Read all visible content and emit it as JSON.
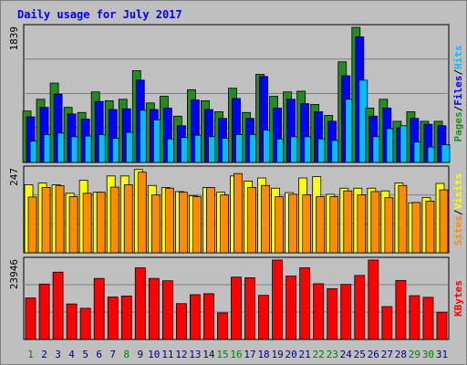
{
  "title": "Daily usage for July 2017",
  "days": [
    "1",
    "2",
    "3",
    "4",
    "5",
    "6",
    "7",
    "8",
    "9",
    "10",
    "11",
    "12",
    "13",
    "14",
    "15",
    "16",
    "17",
    "18",
    "19",
    "20",
    "21",
    "22",
    "23",
    "24",
    "25",
    "26",
    "27",
    "28",
    "29",
    "30",
    "31"
  ],
  "weekend_days": [
    1,
    8,
    15,
    16,
    22,
    23,
    29,
    30
  ],
  "colors": {
    "background": "#c0c0c0",
    "pages": "#228b22",
    "files": "#0000ff",
    "hits": "#00bfff",
    "visits": "#ffff00",
    "sites": "#ff8c00",
    "kbytes": "#ff0000",
    "title": "#0000ff",
    "weekday_label": "#000080",
    "weekend_label": "#008000"
  },
  "chart_data": [
    {
      "type": "bar",
      "panel": "top",
      "max_label": "1839",
      "ylim": [
        0,
        1839
      ],
      "right_labels": [
        {
          "text": "Pages",
          "color": "#228b22"
        },
        {
          "text": "/",
          "color": "#000000"
        },
        {
          "text": "Files",
          "color": "#0000ff"
        },
        {
          "text": "/",
          "color": "#000000"
        },
        {
          "text": "Hits",
          "color": "#00bfff"
        }
      ],
      "series": [
        {
          "name": "Hits",
          "color": "#228b22",
          "values": [
            700,
            860,
            1080,
            750,
            680,
            960,
            840,
            860,
            1250,
            810,
            900,
            630,
            990,
            840,
            690,
            1010,
            680,
            1200,
            900,
            960,
            970,
            790,
            640,
            1370,
            1839,
            740,
            860,
            560,
            690,
            560,
            560
          ]
        },
        {
          "name": "Files",
          "color": "#0000ff",
          "values": [
            620,
            750,
            930,
            660,
            590,
            830,
            720,
            730,
            1120,
            720,
            740,
            500,
            850,
            720,
            600,
            870,
            600,
            1170,
            740,
            860,
            800,
            690,
            560,
            1180,
            1710,
            630,
            740,
            470,
            600,
            520,
            500
          ]
        },
        {
          "name": "Pages",
          "color": "#00bfff",
          "values": [
            290,
            380,
            400,
            350,
            360,
            380,
            330,
            410,
            710,
            580,
            320,
            340,
            370,
            350,
            330,
            380,
            380,
            440,
            320,
            350,
            350,
            320,
            300,
            860,
            1120,
            350,
            460,
            500,
            280,
            210,
            240
          ]
        }
      ]
    },
    {
      "type": "bar",
      "panel": "middle",
      "max_label": "247",
      "ylim": [
        0,
        247
      ],
      "right_labels": [
        {
          "text": "Sites",
          "color": "#ff8c00"
        },
        {
          "text": "/",
          "color": "#000000"
        },
        {
          "text": "Visits",
          "color": "#ffff00"
        }
      ],
      "series": [
        {
          "name": "Visits",
          "color": "#ffff00",
          "values": [
            200,
            205,
            200,
            175,
            213,
            178,
            226,
            226,
            245,
            198,
            192,
            180,
            168,
            192,
            178,
            226,
            211,
            220,
            190,
            177,
            220,
            224,
            172,
            190,
            190,
            190,
            182,
            205,
            147,
            162,
            204
          ]
        },
        {
          "name": "Sites",
          "color": "#ff8c00",
          "values": [
            164,
            192,
            197,
            165,
            175,
            178,
            193,
            200,
            237,
            170,
            190,
            178,
            165,
            192,
            170,
            233,
            192,
            198,
            165,
            172,
            170,
            165,
            165,
            182,
            170,
            180,
            162,
            198,
            148,
            152,
            185
          ]
        }
      ]
    },
    {
      "type": "bar",
      "panel": "bottom",
      "max_label": "23946",
      "ylim": [
        0,
        23946
      ],
      "right_labels": [
        {
          "text": "KBytes",
          "color": "#ff0000"
        }
      ],
      "series": [
        {
          "name": "KBytes",
          "color": "#ff0000",
          "values": [
            12500,
            16700,
            20300,
            10700,
            9400,
            18400,
            12800,
            13100,
            21600,
            18400,
            17700,
            10800,
            13500,
            13800,
            8000,
            18800,
            18600,
            13300,
            23946,
            19100,
            21600,
            16800,
            15300,
            16600,
            19300,
            23946,
            9900,
            17800,
            13200,
            12700,
            8200
          ]
        }
      ]
    }
  ]
}
